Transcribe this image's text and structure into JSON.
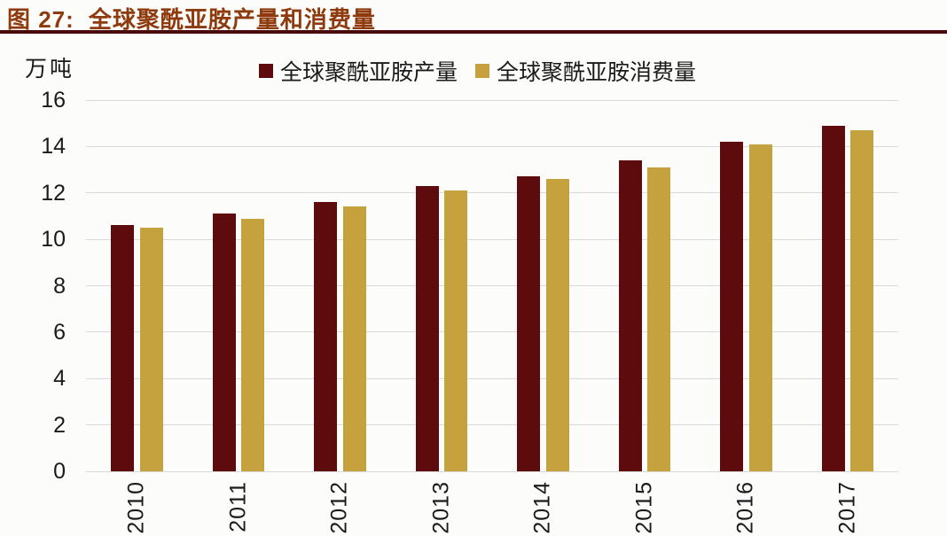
{
  "header": {
    "label": "图 27:",
    "title": "全球聚酰亚胺产量和消费量"
  },
  "axis": {
    "unit_label": "万吨"
  },
  "legend": [
    {
      "key": "production",
      "label": "全球聚酰亚胺产量",
      "color": "#5E0B0D"
    },
    {
      "key": "consumption",
      "label": "全球聚酰亚胺消费量",
      "color": "#C6A23E"
    }
  ],
  "chart_data": {
    "type": "bar",
    "title": "全球聚酰亚胺产量和消费量",
    "categories": [
      "2010",
      "2011",
      "2012",
      "2013",
      "2014",
      "2015",
      "2016",
      "2017"
    ],
    "series": [
      {
        "key": "production",
        "name": "全球聚酰亚胺产量",
        "color": "#5E0B0D",
        "values": [
          10.6,
          11.1,
          11.6,
          12.3,
          12.7,
          13.4,
          14.2,
          14.9
        ]
      },
      {
        "key": "consumption",
        "name": "全球聚酰亚胺消费量",
        "color": "#C6A23E",
        "values": [
          10.5,
          10.9,
          11.4,
          12.1,
          12.6,
          13.1,
          14.1,
          14.7
        ]
      }
    ],
    "xlabel": "",
    "ylabel": "万吨",
    "ylim": [
      0,
      16
    ],
    "yticks": [
      0,
      2,
      4,
      6,
      8,
      10,
      12,
      14,
      16
    ],
    "grid": true,
    "legend_position": "top"
  },
  "style": {
    "title_color": "#8E3A0D",
    "rule_color": "#4B0A0A",
    "gridline_color": "#D9D9D9",
    "text_color": "#1A1A1A"
  }
}
